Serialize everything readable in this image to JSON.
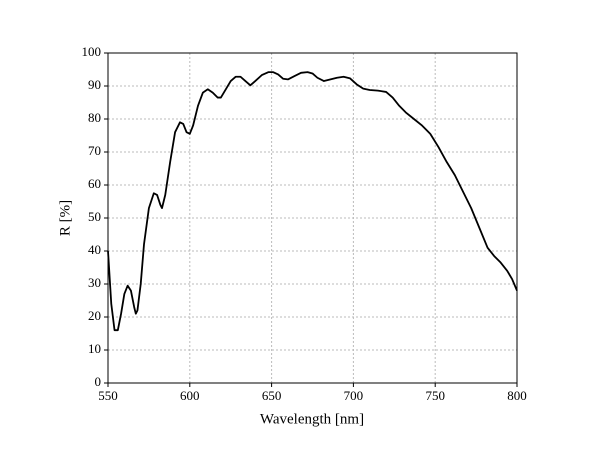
{
  "chart_data": {
    "type": "line",
    "xlabel": "Wavelength [nm]",
    "ylabel": "R [%]",
    "xlim": [
      550,
      800
    ],
    "xticks": [
      550,
      600,
      650,
      700,
      750,
      800
    ],
    "ylim": [
      0,
      100
    ],
    "yticks": [
      0,
      10,
      20,
      30,
      40,
      50,
      60,
      70,
      80,
      90,
      100
    ],
    "grid": true,
    "series": [
      {
        "color": "#000000",
        "x": [
          550,
          552,
          554,
          556,
          558,
          560,
          562,
          564,
          566,
          567,
          568,
          570,
          572,
          575,
          578,
          580,
          582,
          583,
          585,
          588,
          591,
          594,
          596,
          598,
          600,
          602,
          605,
          608,
          611,
          614,
          617,
          619,
          622,
          625,
          628,
          631,
          634,
          637,
          640,
          644,
          648,
          651,
          654,
          657,
          660,
          664,
          668,
          672,
          675,
          678,
          682,
          686,
          690,
          694,
          698,
          702,
          706,
          710,
          715,
          720,
          724,
          728,
          732,
          737,
          742,
          747,
          752,
          757,
          762,
          767,
          772,
          777,
          782,
          786,
          790,
          794,
          797,
          800
        ],
        "values": [
          40,
          24,
          16,
          16,
          21,
          27,
          29.5,
          28,
          23,
          21,
          22,
          30,
          42,
          53,
          57.5,
          57,
          54,
          53,
          57,
          67,
          76,
          79,
          78.5,
          76,
          75.5,
          78,
          84,
          88,
          89,
          88,
          86.5,
          86.5,
          89,
          91.5,
          92.8,
          92.8,
          91.5,
          90.2,
          91.5,
          93.3,
          94.2,
          94.2,
          93.5,
          92.2,
          92,
          93,
          94,
          94.2,
          93.8,
          92.5,
          91.5,
          92,
          92.5,
          92.8,
          92.3,
          90.5,
          89.2,
          88.8,
          88.6,
          88.2,
          86.5,
          84,
          82,
          80,
          78,
          75.5,
          71.5,
          67,
          63,
          58,
          53,
          47,
          41,
          38.5,
          36.5,
          34,
          31.5,
          28
        ]
      }
    ]
  }
}
